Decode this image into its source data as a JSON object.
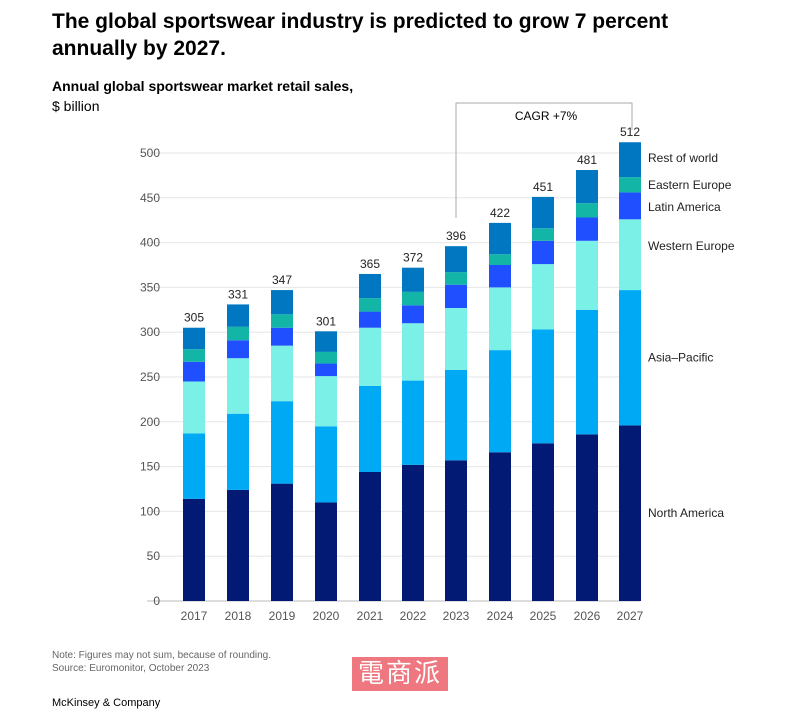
{
  "title": "The global sportswear industry is predicted to grow 7 percent annually by 2027.",
  "subtitle_bold": "Annual global sportswear market retail sales,",
  "subtitle_unit": "$ billion",
  "cagr_label": "CAGR +7%",
  "note": "Note: Figures may not sum, because of rounding.",
  "source": "Source: Euromonitor, October 2023",
  "brand": "McKinsey & Company",
  "watermark": "電商派",
  "chart_data": {
    "type": "bar",
    "stacked": true,
    "title": "Annual global sportswear market retail sales, $ billion",
    "xlabel": "",
    "ylabel": "$ billion",
    "ylim": [
      0,
      500
    ],
    "yticks": [
      0,
      50,
      100,
      150,
      200,
      250,
      300,
      350,
      400,
      450,
      500
    ],
    "grid": true,
    "legend_placement": "right",
    "categories": [
      "2017",
      "2018",
      "2019",
      "2020",
      "2021",
      "2022",
      "2023",
      "2024",
      "2025",
      "2026",
      "2027"
    ],
    "totals": [
      305,
      331,
      347,
      301,
      365,
      372,
      396,
      422,
      451,
      481,
      512
    ],
    "series": [
      {
        "name": "North America",
        "color": "#031a75",
        "values": [
          114,
          124,
          131,
          110,
          144,
          152,
          157,
          166,
          176,
          186,
          196
        ]
      },
      {
        "name": "Asia–Pacific",
        "color": "#00a9f4",
        "values": [
          73,
          85,
          92,
          85,
          96,
          94,
          101,
          114,
          127,
          139,
          151
        ]
      },
      {
        "name": "Western Europe",
        "color": "#7af0e6",
        "values": [
          58,
          62,
          62,
          56,
          65,
          64,
          69,
          70,
          73,
          77,
          79
        ]
      },
      {
        "name": "Latin America",
        "color": "#1f4fff",
        "values": [
          22,
          20,
          20,
          14,
          18,
          20,
          26,
          25,
          26,
          26,
          30
        ]
      },
      {
        "name": "Eastern Europe",
        "color": "#12b5a6",
        "values": [
          14,
          15,
          15,
          13,
          15,
          15,
          14,
          12,
          14,
          16,
          17
        ]
      },
      {
        "name": "Rest of world",
        "color": "#0077c0",
        "values": [
          24,
          25,
          27,
          23,
          27,
          27,
          29,
          35,
          35,
          37,
          39
        ]
      }
    ],
    "annotation": "CAGR +7% (2023–2027)"
  }
}
